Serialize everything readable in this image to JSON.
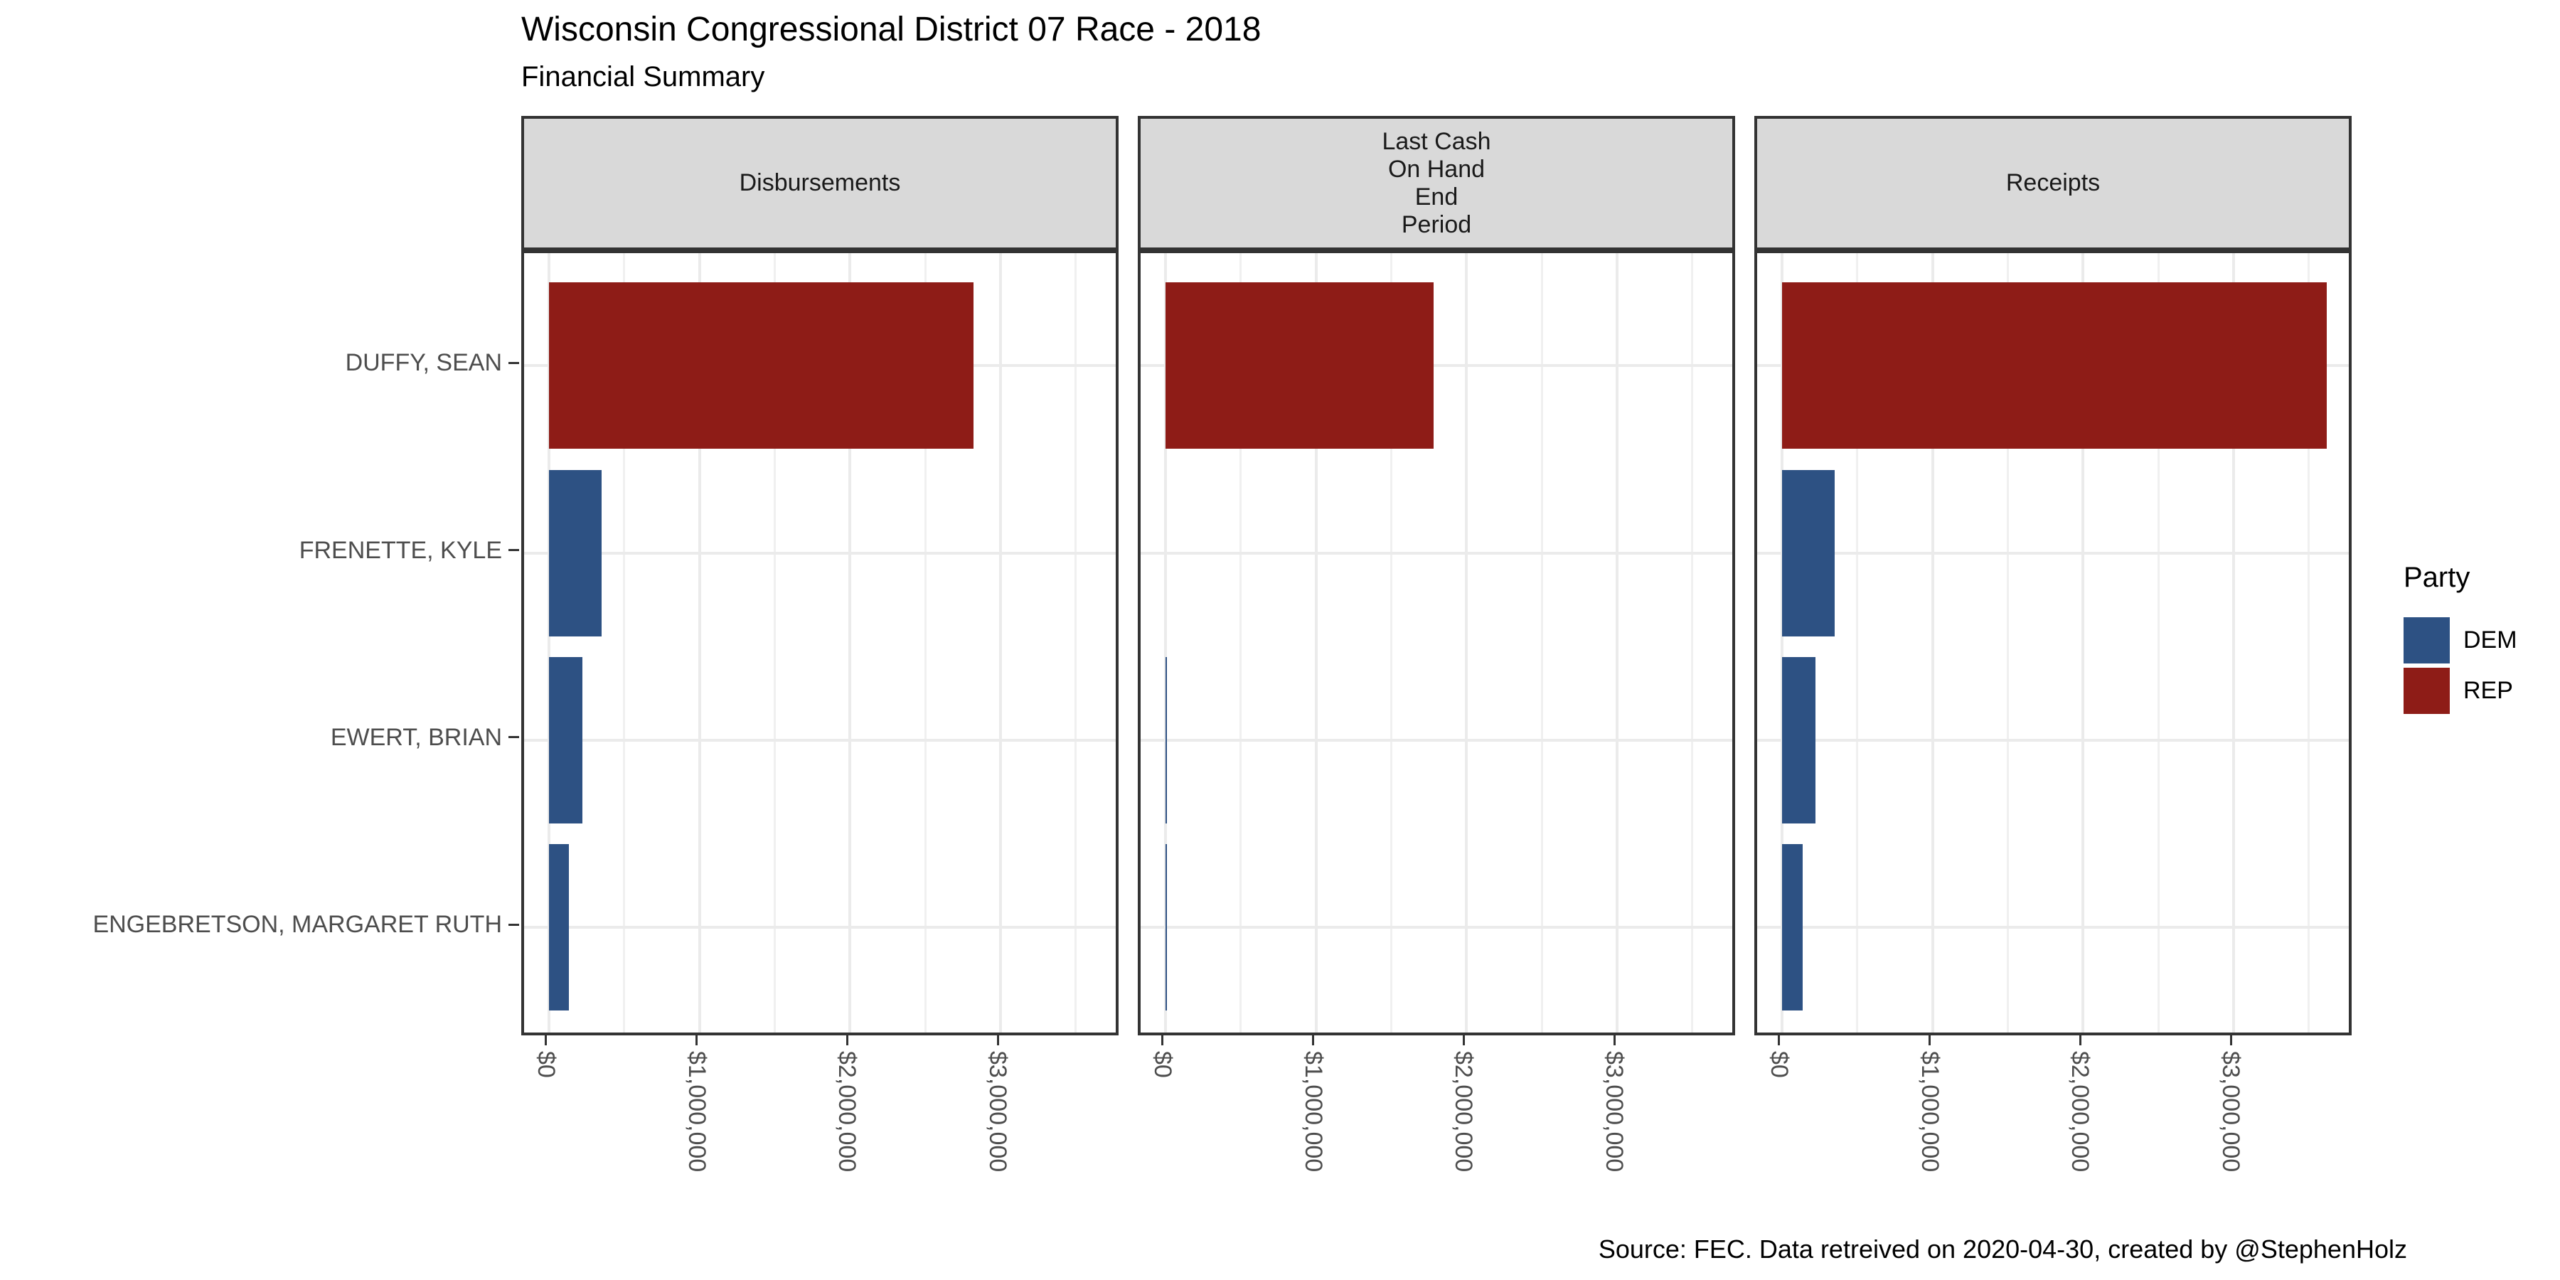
{
  "chart_data": {
    "type": "bar",
    "orientation": "horizontal",
    "title": "Wisconsin Congressional District 07 Race - 2018",
    "subtitle": "Financial Summary",
    "caption": "Source: FEC. Data retreived on 2020-04-30, created by @StephenHolz",
    "categories": [
      "DUFFY, SEAN",
      "FRENETTE, KYLE",
      "EWERT, BRIAN",
      "ENGEBRETSON, MARGARET RUTH"
    ],
    "category_party": [
      "REP",
      "DEM",
      "DEM",
      "DEM"
    ],
    "facets": [
      {
        "label_lines": [
          "Disbursements"
        ]
      },
      {
        "label_lines": [
          "Last Cash",
          "On Hand",
          "End",
          "Period"
        ]
      },
      {
        "label_lines": [
          "Receipts"
        ]
      }
    ],
    "series": [
      {
        "facet": "Disbursements",
        "values": [
          2820000,
          350000,
          220000,
          130000
        ]
      },
      {
        "facet": "Last Cash On Hand End Period",
        "values": [
          1780000,
          0,
          5000,
          5000
        ]
      },
      {
        "facet": "Receipts",
        "values": [
          3620000,
          350000,
          220000,
          135000
        ]
      }
    ],
    "x_axis": {
      "tick_values": [
        0,
        1000000,
        2000000,
        3000000
      ],
      "tick_labels": [
        "$0",
        "$1,000,000",
        "$2,000,000",
        "$3,000,000"
      ],
      "minor_tick_values": [
        500000,
        1500000,
        2500000,
        3500000
      ],
      "xlim": [
        -165300,
        3803000
      ]
    },
    "grid": true,
    "legend": {
      "title": "Party",
      "position": "right",
      "entries": [
        {
          "label": "DEM",
          "color": "#2D5183"
        },
        {
          "label": "REP",
          "color": "#8E1C17"
        }
      ]
    },
    "colors": {
      "DEM": "#2D5183",
      "REP": "#8E1C17"
    }
  }
}
